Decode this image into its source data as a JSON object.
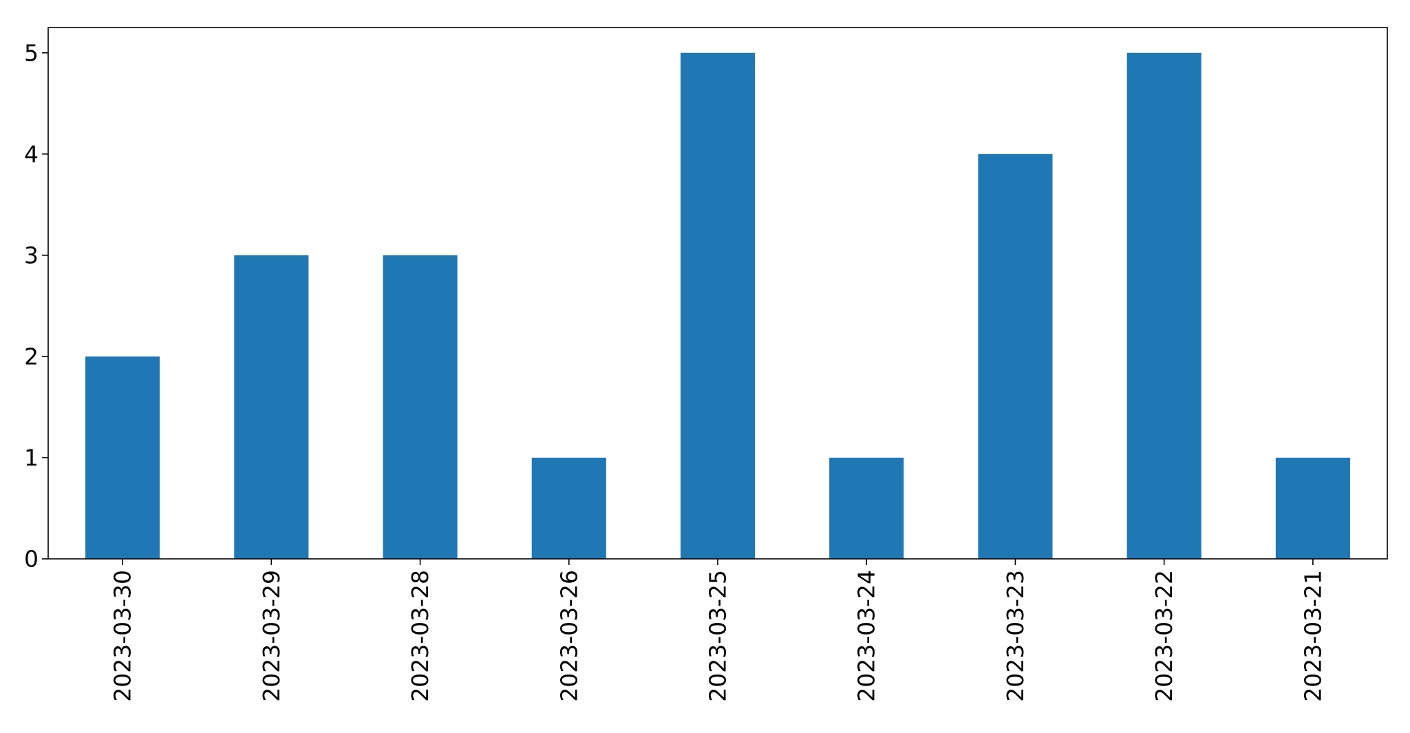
{
  "chart_data": {
    "type": "bar",
    "title": "",
    "xlabel": "",
    "ylabel": "",
    "categories": [
      "2023-03-30",
      "2023-03-29",
      "2023-03-28",
      "2023-03-26",
      "2023-03-25",
      "2023-03-24",
      "2023-03-23",
      "2023-03-22",
      "2023-03-21"
    ],
    "values": [
      2,
      3,
      3,
      1,
      5,
      1,
      4,
      5,
      1
    ],
    "ylim": [
      0,
      5.25
    ],
    "yticks": [
      0,
      1,
      2,
      3,
      4,
      5
    ],
    "grid": false,
    "bar_color": "#1f77b4",
    "x_tick_rotation": "vertical"
  }
}
